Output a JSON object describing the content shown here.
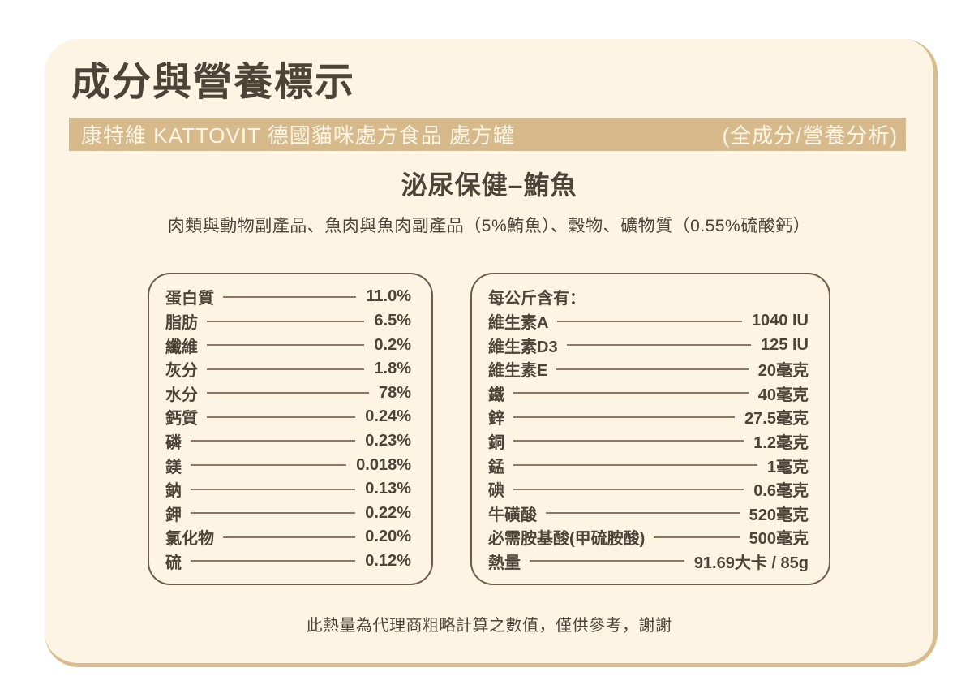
{
  "header": {
    "title": "成分與營養標示",
    "banner_left": "康特維 KATTOVIT 德國貓咪處方食品 處方罐",
    "banner_right": "(全成分/營養分析)"
  },
  "product": {
    "flavor": "泌尿保健–鮪魚",
    "ingredients": "肉類與動物副產品、魚肉與魚肉副產品（5%鮪魚）、穀物、礦物質（0.55%硫酸鈣）"
  },
  "analysis": {
    "rows": [
      {
        "label": "蛋白質",
        "value": "11.0%"
      },
      {
        "label": "脂肪",
        "value": "6.5%"
      },
      {
        "label": "纖維",
        "value": "0.2%"
      },
      {
        "label": "灰分",
        "value": "1.8%"
      },
      {
        "label": "水分",
        "value": "78%"
      },
      {
        "label": "鈣質",
        "value": "0.24%"
      },
      {
        "label": "磷",
        "value": "0.23%"
      },
      {
        "label": "鎂",
        "value": "0.018%"
      },
      {
        "label": "鈉",
        "value": "0.13%"
      },
      {
        "label": "鉀",
        "value": "0.22%"
      },
      {
        "label": "氯化物",
        "value": "0.20%"
      },
      {
        "label": "硫",
        "value": "0.12%"
      }
    ]
  },
  "per_kg": {
    "header": "每公斤含有：",
    "rows": [
      {
        "label": "維生素A",
        "value": "1040 IU"
      },
      {
        "label": "維生素D3",
        "value": "125 IU"
      },
      {
        "label": "維生素E",
        "value": "20毫克"
      },
      {
        "label": "鐵",
        "value": "40毫克"
      },
      {
        "label": "鋅",
        "value": "27.5毫克"
      },
      {
        "label": "銅",
        "value": "1.2毫克"
      },
      {
        "label": "錳",
        "value": "1毫克"
      },
      {
        "label": "碘",
        "value": "0.6毫克"
      },
      {
        "label": "牛磺酸",
        "value": "520毫克"
      },
      {
        "label": "必需胺基酸(甲硫胺酸)",
        "value": "500毫克"
      },
      {
        "label": "熱量",
        "value": "91.69大卡 / 85g"
      }
    ]
  },
  "footnote": "此熱量為代理商粗略計算之數值，僅供參考，謝謝",
  "colors": {
    "page_bg": "#ffffff",
    "card_bg": "#fdf4e3",
    "card_border": "#d9bd8f",
    "banner_bg": "#d6ba8b",
    "banner_text": "#fdf5e6",
    "text": "#4d4336",
    "leader_line": "#8d7763",
    "box_border": "#6d5c46"
  }
}
